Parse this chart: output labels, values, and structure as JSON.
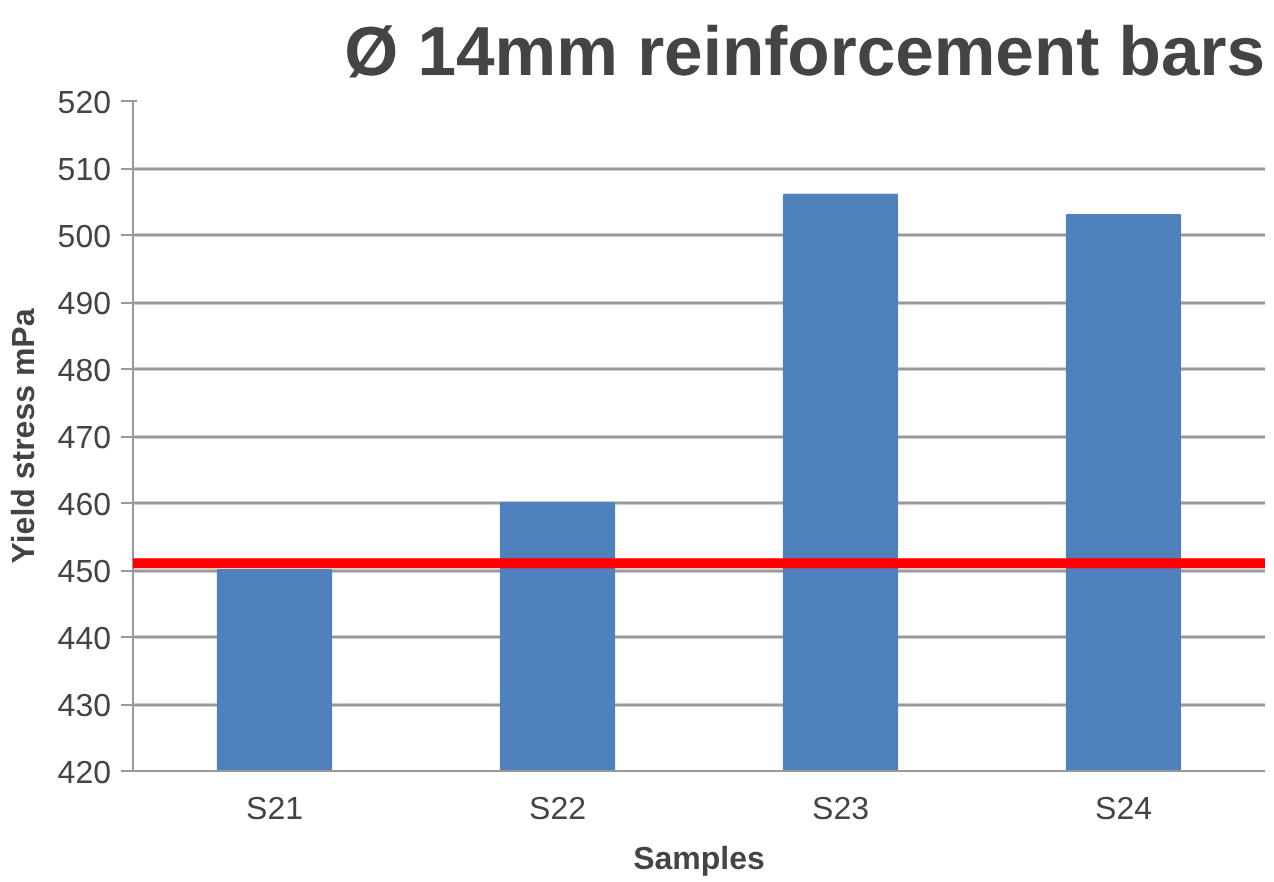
{
  "chart_data": {
    "type": "bar",
    "title": "Ø 14mm reinforcement bars",
    "xlabel": "Samples",
    "ylabel": "Yield stress mPa",
    "categories": [
      "S21",
      "S22",
      "S23",
      "S24"
    ],
    "values": [
      450,
      460,
      506,
      503
    ],
    "color": "#4f81bd",
    "ylim": [
      420,
      520
    ],
    "yticks": [
      420,
      430,
      440,
      450,
      460,
      470,
      480,
      490,
      500,
      510,
      520
    ],
    "grid": "y",
    "ref_lines": [
      {
        "axis": "y",
        "value": 451,
        "color": "#ff0000"
      }
    ]
  }
}
